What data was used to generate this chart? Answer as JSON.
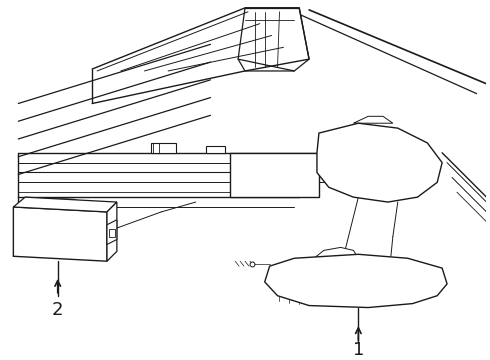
{
  "background_color": "#ffffff",
  "line_color": "#1a1a1a",
  "label_1": "1",
  "label_2": "2",
  "label_fontsize": 13,
  "fig_width": 4.9,
  "fig_height": 3.6,
  "dpi": 100
}
